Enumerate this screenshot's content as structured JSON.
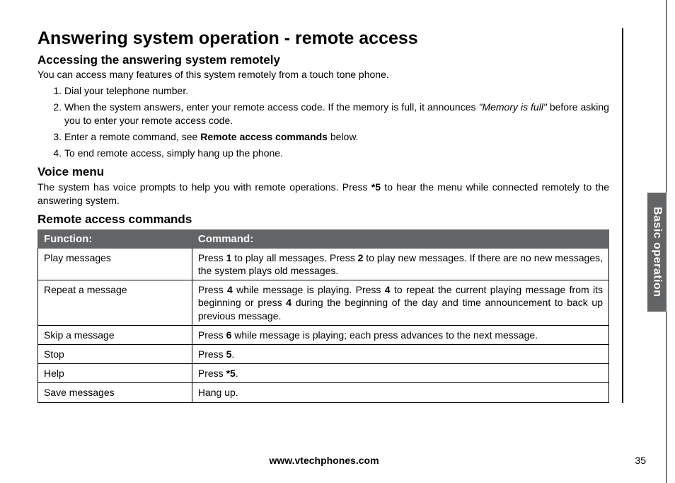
{
  "page": {
    "title": "Answering system operation - remote access",
    "section1": {
      "heading": "Accessing the answering system remotely",
      "intro": "You can access many features of this system remotely from a touch tone phone.",
      "steps": [
        {
          "num": "1.",
          "text": "Dial your telephone number."
        },
        {
          "num": "2.",
          "pre": "When the system answers, enter your remote access code. If the memory is full, it announces ",
          "italic": "\"Memory is full\"",
          "post": " before asking you to enter your remote access code."
        },
        {
          "num": "3.",
          "pre": "Enter a remote command, see ",
          "bold": "Remote access commands",
          "post": " below."
        },
        {
          "num": "4.",
          "text": "To end remote access, simply hang up the phone."
        }
      ]
    },
    "section2": {
      "heading": "Voice menu",
      "para_pre": "The system has voice prompts to help you with remote operations. Press ",
      "para_bold": "*5",
      "para_post": " to hear the menu while connected remotely to the answering system."
    },
    "section3": {
      "heading": "Remote access commands",
      "header_function": "Function:",
      "header_command": "Command:",
      "rows": [
        {
          "func": "Play messages",
          "cmd_parts": [
            {
              "t": "Press "
            },
            {
              "b": "1"
            },
            {
              "t": " to play all messages. Press "
            },
            {
              "b": "2"
            },
            {
              "t": " to play new messages. If there are no new messages, the system plays old messages."
            }
          ]
        },
        {
          "func": "Repeat a message",
          "cmd_parts": [
            {
              "t": "Press "
            },
            {
              "b": "4"
            },
            {
              "t": " while message is playing. Press "
            },
            {
              "b": "4"
            },
            {
              "t": " to repeat the current playing message from its beginning or press "
            },
            {
              "b": "4"
            },
            {
              "t": " during the beginning of the day and time announcement to back up previous message."
            }
          ]
        },
        {
          "func": "Skip a message",
          "cmd_parts": [
            {
              "t": "Press "
            },
            {
              "b": "6"
            },
            {
              "t": " while message is playing; each press advances to the next message."
            }
          ]
        },
        {
          "func": "Stop",
          "cmd_parts": [
            {
              "t": "Press "
            },
            {
              "b": "5"
            },
            {
              "t": "."
            }
          ]
        },
        {
          "func": "Help",
          "cmd_parts": [
            {
              "t": "Press "
            },
            {
              "b": "*5"
            },
            {
              "t": "."
            }
          ]
        },
        {
          "func": "Save messages",
          "cmd_parts": [
            {
              "t": "Hang up."
            }
          ]
        }
      ]
    },
    "footer_url": "www.vtechphones.com",
    "page_number": "35",
    "side_tab": "Basic operation"
  },
  "colors": {
    "header_bg": "#636466",
    "header_text": "#ffffff",
    "text": "#000000"
  }
}
